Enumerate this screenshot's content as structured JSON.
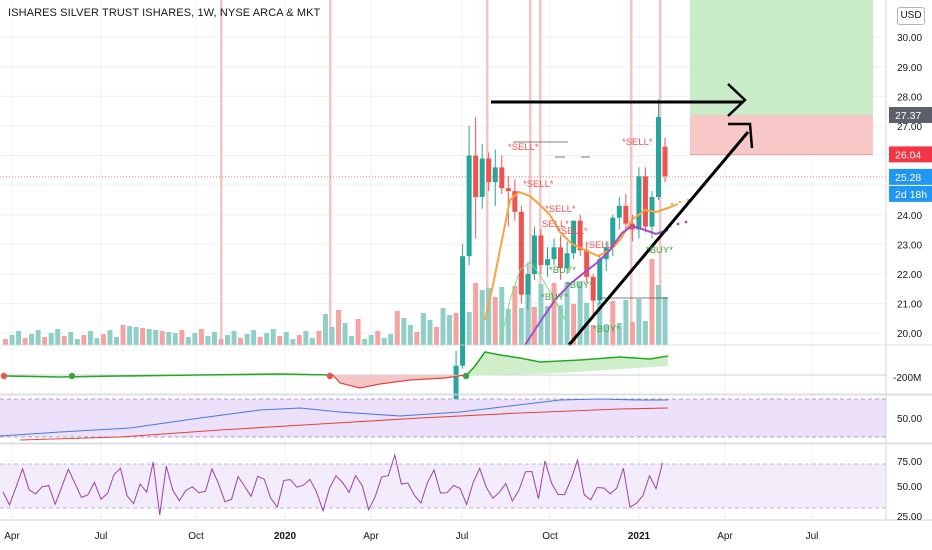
{
  "header": {
    "title": "ISHARES SILVER TRUST ISHARES, 1W, NYSE ARCA & MKT",
    "currency": "USD"
  },
  "colors": {
    "up": "#26a69a",
    "down": "#ef5350",
    "vol_up": "#8fcfc8",
    "vol_down": "#f5a3a1",
    "sell_text": "#ef5350",
    "buy_text": "#43a047",
    "ma_fast": "#f7a440",
    "ma_slow": "#a24cc8",
    "target_zone": "#c8ebc8",
    "stop_zone": "#f8c8c8",
    "highlight_bar": "#f3c5c5",
    "cmf_fill": "#cfeec9",
    "cmf_line": "#22ab22",
    "cmf_neg_fill": "#f4c6c6",
    "rsi_bg": "#ece0fa",
    "blue_line": "#4a7be0",
    "red_line": "#e0463c",
    "osc_line": "#9c40b0"
  },
  "price_axis": {
    "ticks": [
      "30.00",
      "29.00",
      "28.00",
      "27.00",
      "24.00",
      "23.00",
      "22.00",
      "21.00",
      "20.00"
    ],
    "labels": [
      {
        "text": "27.37",
        "bg": "#5d606b"
      },
      {
        "text": "26.04",
        "bg": "#f23645"
      },
      {
        "text": "25.28",
        "bg": "#2196f3"
      },
      {
        "text": "2d 18h",
        "bg": "#2196f3"
      }
    ]
  },
  "time_axis": [
    "Apr",
    "Jul",
    "Oct",
    "2020",
    "Apr",
    "Jul",
    "Oct",
    "2021",
    "Apr",
    "Jul"
  ],
  "pane2_ticks": [
    "-200M"
  ],
  "pane3_ticks": [
    "50.00"
  ],
  "pane4_ticks": [
    "75.00",
    "50.00",
    "25.00"
  ],
  "signals": [
    "*SELL*",
    "*SELL*",
    "*SELL*",
    "*SELL*",
    "SELL*",
    "*SELL*",
    "*SELL*",
    "*BUY*",
    "*BUY*",
    "*BUY*",
    "*BUY*",
    "*BUY*"
  ],
  "chart_data": {
    "type": "candlestick",
    "title": "ISHARES SILVER TRUST ISHARES, 1W, NYSE ARCA & MKT",
    "timeframe": "1W",
    "ylim": [
      19.6,
      30.3
    ],
    "annotations": {
      "last_price": 25.28,
      "target_level": 27.37,
      "stop_level": 26.04,
      "countdown": "2d 18h"
    },
    "candles_2020_2021": [
      {
        "o": 17.2,
        "h": 19.4,
        "l": 17.0,
        "c": 18.9
      },
      {
        "o": 18.9,
        "h": 23.0,
        "l": 18.8,
        "c": 22.6
      },
      {
        "o": 22.6,
        "h": 27.0,
        "l": 22.3,
        "c": 26.0
      },
      {
        "o": 26.0,
        "h": 27.3,
        "l": 23.2,
        "c": 24.6
      },
      {
        "o": 24.6,
        "h": 26.4,
        "l": 24.2,
        "c": 25.9
      },
      {
        "o": 25.9,
        "h": 26.1,
        "l": 24.8,
        "c": 25.1
      },
      {
        "o": 25.1,
        "h": 26.2,
        "l": 24.3,
        "c": 25.6
      },
      {
        "o": 25.6,
        "h": 26.0,
        "l": 24.7,
        "c": 24.9
      },
      {
        "o": 24.9,
        "h": 25.3,
        "l": 23.6,
        "c": 24.8
      },
      {
        "o": 24.8,
        "h": 25.2,
        "l": 23.8,
        "c": 24.1
      },
      {
        "o": 24.1,
        "h": 24.3,
        "l": 21.0,
        "c": 21.3
      },
      {
        "o": 21.3,
        "h": 22.4,
        "l": 20.8,
        "c": 22.0
      },
      {
        "o": 22.0,
        "h": 23.6,
        "l": 21.8,
        "c": 23.3
      },
      {
        "o": 23.3,
        "h": 23.5,
        "l": 22.0,
        "c": 22.3
      },
      {
        "o": 22.3,
        "h": 22.9,
        "l": 21.9,
        "c": 22.5
      },
      {
        "o": 22.5,
        "h": 23.2,
        "l": 22.3,
        "c": 22.9
      },
      {
        "o": 22.9,
        "h": 23.3,
        "l": 21.8,
        "c": 22.2
      },
      {
        "o": 22.2,
        "h": 23.1,
        "l": 22.0,
        "c": 22.7
      },
      {
        "o": 22.7,
        "h": 23.8,
        "l": 22.5,
        "c": 23.8
      },
      {
        "o": 23.8,
        "h": 24.0,
        "l": 22.6,
        "c": 22.8
      },
      {
        "o": 22.8,
        "h": 23.0,
        "l": 21.7,
        "c": 21.9
      },
      {
        "o": 21.9,
        "h": 22.0,
        "l": 20.5,
        "c": 21.1
      },
      {
        "o": 21.1,
        "h": 22.6,
        "l": 21.0,
        "c": 22.5
      },
      {
        "o": 22.5,
        "h": 23.1,
        "l": 22.1,
        "c": 22.9
      },
      {
        "o": 22.9,
        "h": 24.0,
        "l": 22.6,
        "c": 23.9
      },
      {
        "o": 23.9,
        "h": 24.6,
        "l": 23.5,
        "c": 24.3
      },
      {
        "o": 24.3,
        "h": 24.7,
        "l": 23.4,
        "c": 23.7
      },
      {
        "o": 23.7,
        "h": 24.0,
        "l": 23.1,
        "c": 23.5
      },
      {
        "o": 23.5,
        "h": 25.6,
        "l": 23.2,
        "c": 25.3
      },
      {
        "o": 25.3,
        "h": 25.6,
        "l": 23.4,
        "c": 23.6
      },
      {
        "o": 23.6,
        "h": 24.8,
        "l": 23.2,
        "c": 24.6
      },
      {
        "o": 24.6,
        "h": 27.9,
        "l": 24.5,
        "c": 27.3
      },
      {
        "o": 26.3,
        "h": 26.6,
        "l": 25.1,
        "c": 25.3
      }
    ]
  }
}
